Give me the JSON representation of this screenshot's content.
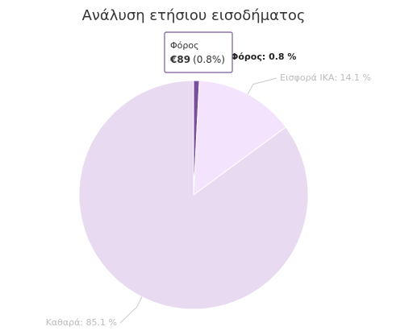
{
  "chart_data": {
    "type": "pie",
    "title": "Ανάλυση ετήσιου εισοδήματος",
    "categories": [
      "Φόρος",
      "Εισφορά ΙΚΑ",
      "Καθαρά"
    ],
    "values": [
      0.8,
      14.1,
      85.1
    ],
    "value_labels": [
      "Φόρος: 0.8 %",
      "Εισφορά ΙΚΑ: 14.1 %",
      "Καθαρά: 85.1 %"
    ],
    "colors": [
      "#7a4f9e",
      "#f3e3fc",
      "#e8daf0"
    ],
    "tooltip": {
      "title": "Φόρος",
      "value": "€89",
      "percent": "(0.8%)"
    }
  }
}
